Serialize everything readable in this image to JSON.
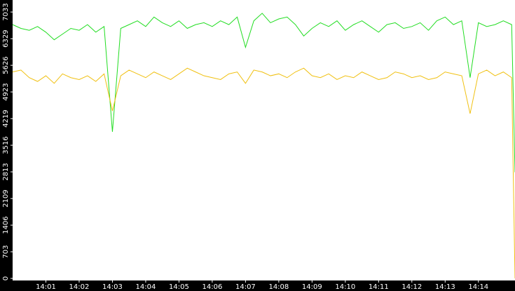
{
  "chart_data": {
    "type": "line",
    "x": [
      0,
      0.25,
      0.5,
      0.75,
      1,
      1.25,
      1.5,
      1.75,
      2,
      2.25,
      2.5,
      2.75,
      3,
      3.25,
      3.5,
      3.75,
      4,
      4.25,
      4.5,
      4.75,
      5,
      5.25,
      5.5,
      5.75,
      6,
      6.25,
      6.5,
      6.75,
      7,
      7.25,
      7.5,
      7.75,
      8,
      8.25,
      8.5,
      8.75,
      9,
      9.25,
      9.5,
      9.75,
      10,
      10.25,
      10.5,
      10.75,
      11,
      11.25,
      11.5,
      11.75,
      12,
      12.25,
      12.5,
      12.75,
      13,
      13.25,
      13.5,
      13.75,
      14,
      14.25,
      14.5,
      14.75,
      15,
      15.1
    ],
    "series": [
      {
        "color": "#22dd22",
        "values": [
          6700,
          6600,
          6550,
          6650,
          6500,
          6300,
          6450,
          6600,
          6550,
          6700,
          6500,
          6650,
          3870,
          6600,
          6700,
          6800,
          6650,
          6900,
          6750,
          6650,
          6800,
          6600,
          6700,
          6750,
          6650,
          6800,
          6700,
          6900,
          6100,
          6800,
          7000,
          6750,
          6850,
          6900,
          6700,
          6400,
          6600,
          6750,
          6650,
          6800,
          6550,
          6700,
          6800,
          6650,
          6500,
          6700,
          6750,
          6600,
          6650,
          6750,
          6550,
          6800,
          6900,
          6700,
          6800,
          5300,
          6750,
          6650,
          6700,
          6800,
          6700,
          2800
        ]
      },
      {
        "color": "#f0c010",
        "values": [
          5450,
          5500,
          5300,
          5200,
          5350,
          5150,
          5400,
          5300,
          5250,
          5350,
          5200,
          5400,
          4420,
          5350,
          5500,
          5400,
          5300,
          5450,
          5350,
          5250,
          5400,
          5550,
          5450,
          5350,
          5300,
          5250,
          5400,
          5450,
          5150,
          5500,
          5450,
          5350,
          5400,
          5300,
          5450,
          5550,
          5350,
          5300,
          5400,
          5250,
          5350,
          5300,
          5450,
          5350,
          5250,
          5300,
          5450,
          5400,
          5300,
          5350,
          5250,
          5300,
          5450,
          5400,
          5350,
          4350,
          5400,
          5500,
          5350,
          5450,
          5300,
          0
        ]
      }
    ],
    "xlim": [
      0,
      15.1
    ],
    "xticks": [
      {
        "value": 1,
        "label": "14:01"
      },
      {
        "value": 2,
        "label": "14:02"
      },
      {
        "value": 3,
        "label": "14:03"
      },
      {
        "value": 4,
        "label": "14:04"
      },
      {
        "value": 5,
        "label": "14:05"
      },
      {
        "value": 6,
        "label": "14:06"
      },
      {
        "value": 7,
        "label": "14:07"
      },
      {
        "value": 8,
        "label": "14:08"
      },
      {
        "value": 9,
        "label": "14:09"
      },
      {
        "value": 10,
        "label": "14:10"
      },
      {
        "value": 11,
        "label": "14:11"
      },
      {
        "value": 12,
        "label": "14:12"
      },
      {
        "value": 13,
        "label": "14:13"
      },
      {
        "value": 14,
        "label": "14:14"
      }
    ],
    "ylim": [
      -55,
      7350
    ],
    "yticks": [
      0,
      703,
      1406,
      2109,
      2813,
      3516,
      4219,
      4923,
      5626,
      6329,
      7033
    ],
    "grid": false
  }
}
